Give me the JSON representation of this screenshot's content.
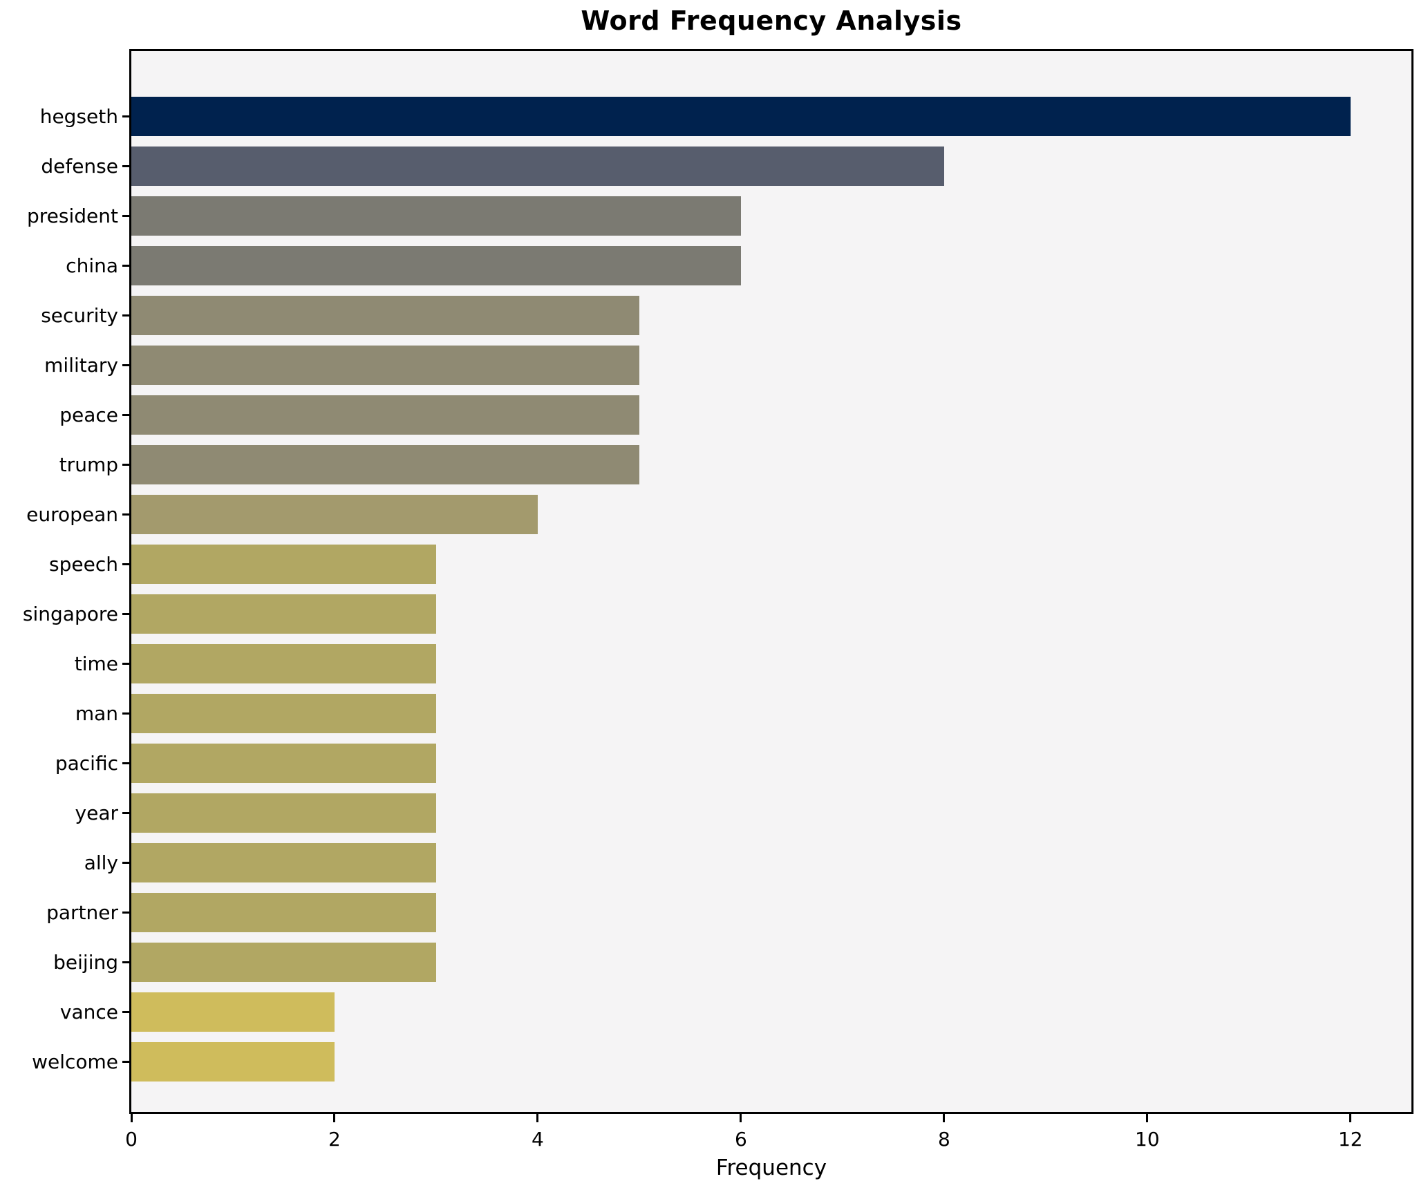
{
  "chart_data": {
    "type": "bar",
    "orientation": "horizontal",
    "title": "Word Frequency Analysis",
    "xlabel": "Frequency",
    "ylabel": "",
    "categories": [
      "hegseth",
      "defense",
      "president",
      "china",
      "security",
      "military",
      "peace",
      "trump",
      "european",
      "speech",
      "singapore",
      "time",
      "man",
      "pacific",
      "year",
      "ally",
      "partner",
      "beijing",
      "vance",
      "welcome"
    ],
    "values": [
      12,
      8,
      6,
      6,
      5,
      5,
      5,
      5,
      4,
      3,
      3,
      3,
      3,
      3,
      3,
      3,
      3,
      3,
      2,
      2
    ],
    "bar_colors": [
      "#00224e",
      "#575d6d",
      "#7b7a72",
      "#7b7a72",
      "#8f8a73",
      "#8f8a73",
      "#8f8a73",
      "#8f8a73",
      "#a39a6d",
      "#b1a763",
      "#b1a763",
      "#b1a763",
      "#b1a763",
      "#b1a763",
      "#b1a763",
      "#b1a763",
      "#b1a763",
      "#b1a763",
      "#cfbc5c",
      "#cfbc5c"
    ],
    "xticks": [
      0,
      2,
      4,
      6,
      8,
      10,
      12
    ],
    "xlim": [
      0,
      12.6
    ],
    "grid": false,
    "legend": "none",
    "plot_background": "#f5f4f5",
    "figure_background": "#ffffff",
    "color_scheme": "cividis gradient, darkest navy = highest frequency, yellow = lowest"
  }
}
